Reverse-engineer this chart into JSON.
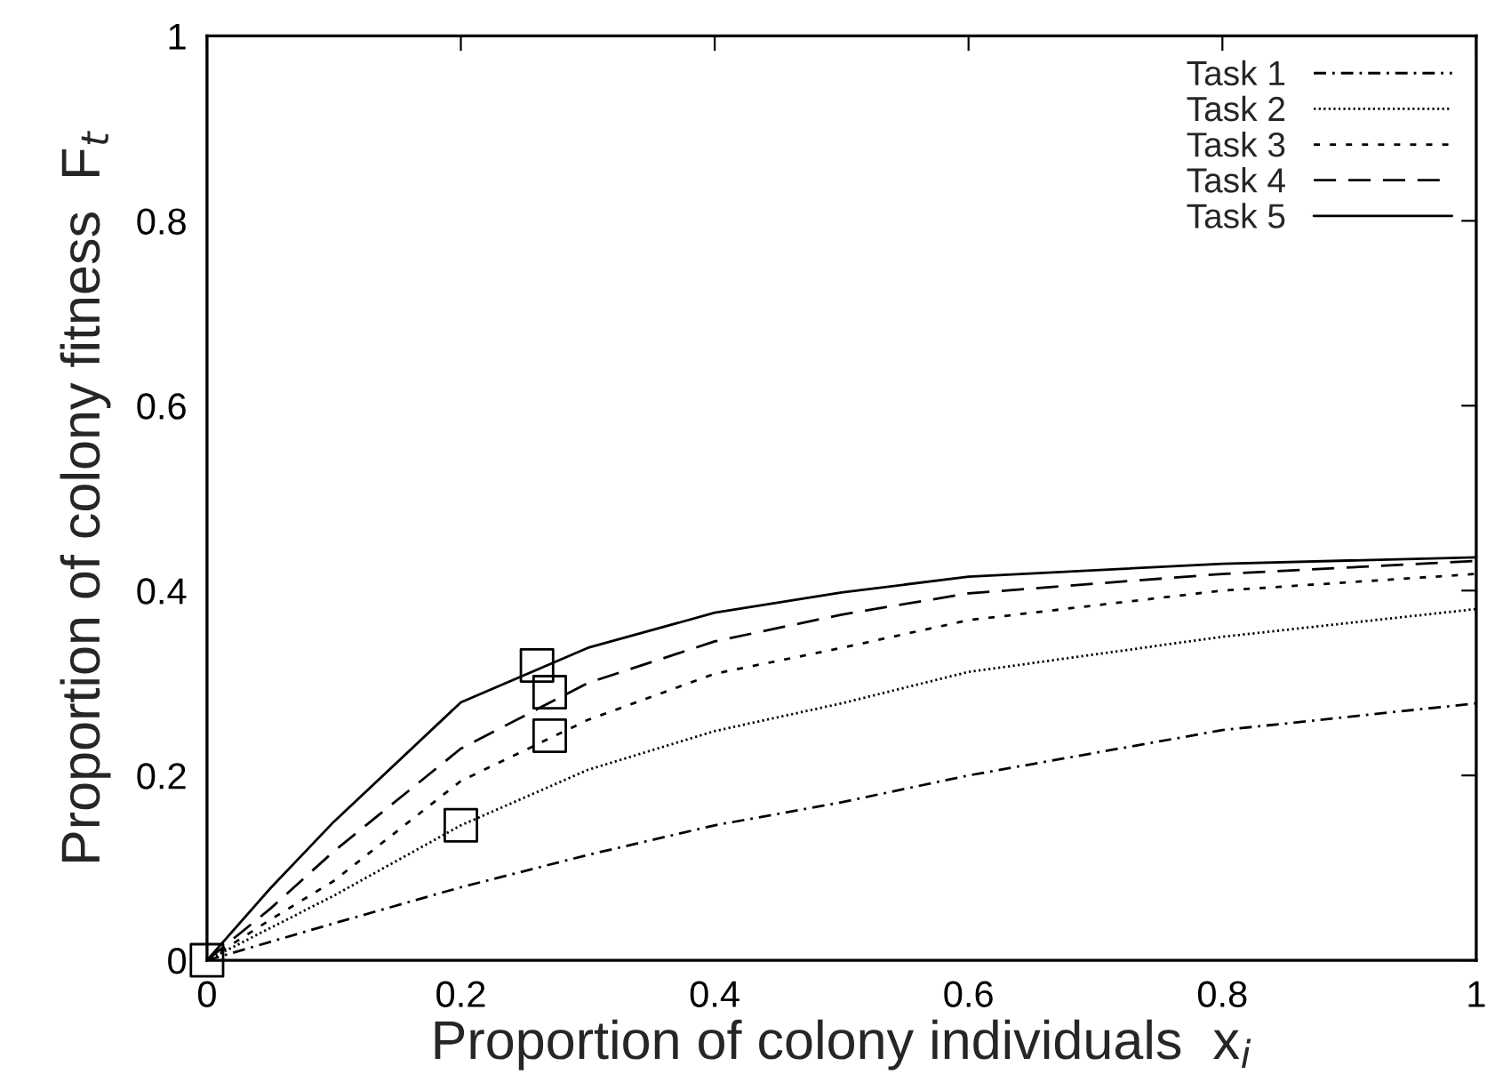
{
  "chart_data": {
    "type": "line",
    "xlabel": "Proportion of colony individuals  x$_{i}$",
    "ylabel": "Proportion of colony fitness  F$_{t}$",
    "xlim": [
      0,
      1
    ],
    "ylim": [
      0,
      1
    ],
    "xticks": [
      0,
      0.2,
      0.4,
      0.6,
      0.8,
      1
    ],
    "yticks": [
      0,
      0.2,
      0.4,
      0.6,
      0.8,
      1
    ],
    "grid": false,
    "legend": "top right",
    "marker": "none",
    "x": [
      0,
      0.05,
      0.1,
      0.2,
      0.3,
      0.4,
      0.5,
      0.6,
      0.8,
      1.0
    ],
    "series": [
      {
        "name": "Task 1",
        "color": "#000000",
        "line_style": "dashdot",
        "values": [
          0,
          0.02,
          0.04,
          0.079,
          0.114,
          0.146,
          0.171,
          0.2,
          0.249,
          0.278
        ]
      },
      {
        "name": "Task 2",
        "color": "#000000",
        "line_style": "dotted",
        "values": [
          0,
          0.035,
          0.07,
          0.146,
          0.206,
          0.248,
          0.278,
          0.312,
          0.35,
          0.38
        ]
      },
      {
        "name": "Task 3",
        "color": "#000000",
        "line_style": "short-dashed",
        "values": [
          0,
          0.044,
          0.086,
          0.194,
          0.26,
          0.31,
          0.338,
          0.368,
          0.4,
          0.418
        ]
      },
      {
        "name": "Task 4",
        "color": "#000000",
        "line_style": "dashed",
        "values": [
          0,
          0.056,
          0.118,
          0.229,
          0.3,
          0.345,
          0.374,
          0.397,
          0.418,
          0.432
        ]
      },
      {
        "name": "Task 5",
        "color": "#000000",
        "line_style": "solid",
        "values": [
          0,
          0.078,
          0.15,
          0.279,
          0.338,
          0.376,
          0.398,
          0.415,
          0.429,
          0.436
        ]
      },
      {
        "type": "scatter",
        "marker": "square",
        "color": "#000000",
        "x": [
          0,
          0.2,
          0.26,
          0.27,
          0.27
        ],
        "values": [
          0,
          0.146,
          0.319,
          0.29,
          0.243
        ]
      }
    ]
  }
}
